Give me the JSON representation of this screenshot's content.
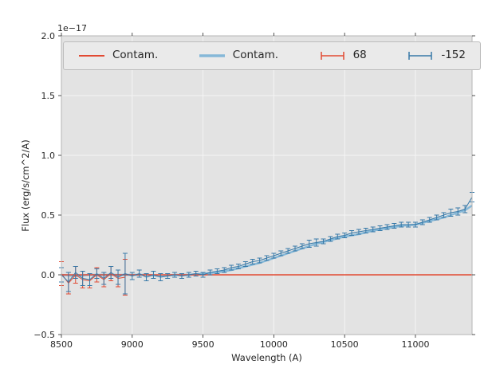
{
  "figure": {
    "background": "#ffffff",
    "axes_background": "#e3e3e3",
    "grid_color": "#f5f5f5",
    "spine_color": "#b5b5b5",
    "tick_color": "#262626",
    "offset_text": "1e−17"
  },
  "axes": {
    "xlabel": "Wavelength (A)",
    "ylabel": "Flux (erg/s/cm^2/A)",
    "xlim": [
      8500,
      11400
    ],
    "ylim": [
      -0.5,
      2.0
    ],
    "xticks": [
      8500,
      9000,
      9500,
      10000,
      10500,
      11000
    ],
    "yticks": [
      -0.5,
      0.0,
      0.5,
      1.0,
      1.5,
      2.0
    ],
    "xtick_labels": [
      "8500",
      "9000",
      "9500",
      "10000",
      "10500",
      "11000"
    ],
    "ytick_labels": [
      "−0.5",
      "0.0",
      "0.5",
      "1.0",
      "1.5",
      "2.0"
    ]
  },
  "legend": {
    "entries": [
      {
        "label": "Contam.",
        "type": "line",
        "color": "#e24a33",
        "linewidth": 2
      },
      {
        "label": "Contam.",
        "type": "line",
        "color": "#85b8d8",
        "linewidth": 3.5
      },
      {
        "label": "68",
        "type": "errorbar",
        "color": "#e24a33",
        "linewidth": 1.5
      },
      {
        "label": "-152",
        "type": "errorbar",
        "color": "#3779a8",
        "linewidth": 1.5
      }
    ]
  },
  "chart_data": {
    "type": "line",
    "title": "",
    "xlabel": "Wavelength (A)",
    "ylabel": "Flux (erg/s/cm^2/A)",
    "unit_multiplier": "1e-17",
    "xlim": [
      8500,
      11400
    ],
    "ylim": [
      -0.5,
      2.0
    ],
    "grid": true,
    "legend_position": "upper center",
    "series": [
      {
        "name": "Contam.",
        "type": "line",
        "color": "#85b8d8",
        "linewidth": 2.5,
        "x": [
          8500,
          8600,
          8700,
          8800,
          8900,
          9000,
          9100,
          9200,
          9300,
          9400,
          9500,
          9600,
          9700,
          9800,
          9900,
          10000,
          10100,
          10200,
          10300,
          10400,
          10500,
          10600,
          10700,
          10800,
          10900,
          11000,
          11100,
          11200,
          11300,
          11350,
          11400
        ],
        "y": [
          0.0,
          -0.01,
          0.0,
          0.0,
          0.0,
          0.0,
          0.0,
          -0.01,
          0.0,
          0.0,
          0.01,
          0.02,
          0.04,
          0.07,
          0.1,
          0.14,
          0.18,
          0.22,
          0.26,
          0.29,
          0.32,
          0.34,
          0.37,
          0.39,
          0.41,
          0.42,
          0.45,
          0.48,
          0.52,
          0.54,
          0.58
        ]
      },
      {
        "name": "Contam.",
        "type": "line",
        "color": "#e24a33",
        "linewidth": 1.5,
        "x": [
          8500,
          11400
        ],
        "y": [
          0.0,
          0.0
        ]
      },
      {
        "name": "68",
        "type": "errorbar",
        "color": "#e24a33",
        "linewidth": 1,
        "x": [
          8500,
          8550,
          8600,
          8650,
          8700,
          8750,
          8800,
          8850,
          8900,
          8950
        ],
        "y": [
          0.01,
          -0.07,
          0.0,
          -0.04,
          -0.05,
          0.0,
          -0.04,
          0.01,
          -0.03,
          -0.02
        ],
        "yerr": [
          0.1,
          0.09,
          0.07,
          0.07,
          0.06,
          0.06,
          0.06,
          0.06,
          0.07,
          0.15
        ]
      },
      {
        "name": "-152",
        "type": "errorbar",
        "color": "#3779a8",
        "linewidth": 1,
        "x": [
          8500,
          8550,
          8600,
          8650,
          8700,
          8750,
          8800,
          8850,
          8900,
          8950,
          9000,
          9050,
          9100,
          9150,
          9200,
          9250,
          9300,
          9350,
          9400,
          9450,
          9500,
          9550,
          9600,
          9650,
          9700,
          9750,
          9800,
          9850,
          9900,
          9950,
          10000,
          10050,
          10100,
          10150,
          10200,
          10250,
          10300,
          10350,
          10400,
          10450,
          10500,
          10550,
          10600,
          10650,
          10700,
          10750,
          10800,
          10850,
          10900,
          10950,
          11000,
          11050,
          11100,
          11150,
          11200,
          11250,
          11300,
          11350,
          11400
        ],
        "y": [
          0.0,
          -0.06,
          0.02,
          -0.03,
          -0.04,
          0.01,
          -0.03,
          0.02,
          -0.02,
          0.01,
          -0.01,
          0.01,
          -0.02,
          0.0,
          -0.02,
          -0.01,
          0.0,
          -0.01,
          0.0,
          0.01,
          0.0,
          0.02,
          0.03,
          0.04,
          0.06,
          0.07,
          0.09,
          0.11,
          0.12,
          0.14,
          0.16,
          0.18,
          0.2,
          0.22,
          0.24,
          0.26,
          0.27,
          0.28,
          0.3,
          0.32,
          0.33,
          0.35,
          0.36,
          0.37,
          0.38,
          0.39,
          0.4,
          0.41,
          0.42,
          0.42,
          0.42,
          0.44,
          0.46,
          0.48,
          0.5,
          0.52,
          0.53,
          0.55,
          0.65
        ],
        "yerr": [
          0.06,
          0.08,
          0.05,
          0.06,
          0.05,
          0.04,
          0.05,
          0.05,
          0.06,
          0.17,
          0.03,
          0.03,
          0.03,
          0.03,
          0.03,
          0.02,
          0.02,
          0.02,
          0.02,
          0.02,
          0.02,
          0.02,
          0.02,
          0.02,
          0.02,
          0.02,
          0.02,
          0.02,
          0.02,
          0.02,
          0.02,
          0.02,
          0.02,
          0.02,
          0.02,
          0.03,
          0.03,
          0.02,
          0.02,
          0.02,
          0.02,
          0.02,
          0.02,
          0.02,
          0.02,
          0.02,
          0.02,
          0.02,
          0.02,
          0.02,
          0.02,
          0.02,
          0.02,
          0.02,
          0.02,
          0.03,
          0.03,
          0.03,
          0.04
        ]
      }
    ]
  }
}
